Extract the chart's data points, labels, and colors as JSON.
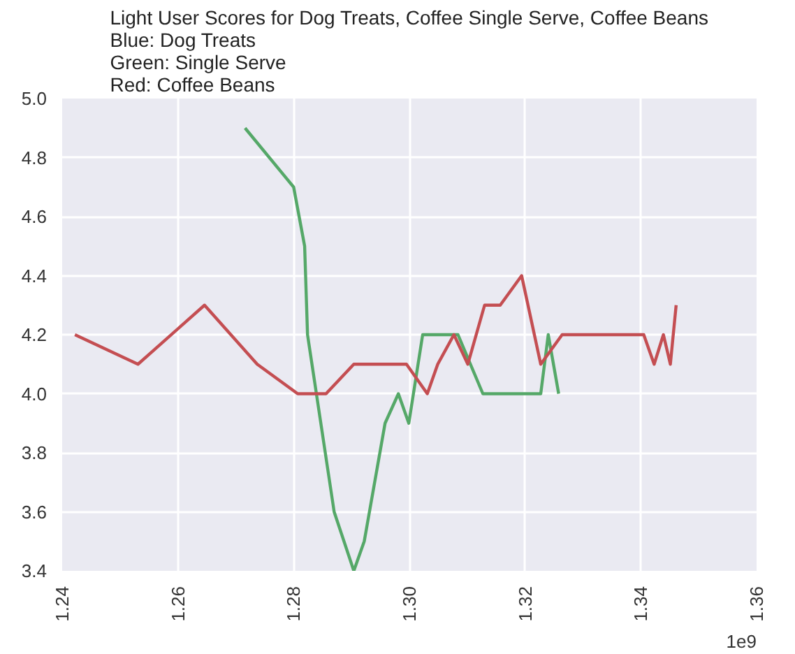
{
  "chart_data": {
    "type": "line",
    "title": "Light User Scores for Dog Treats, Coffee Single Serve, Coffee Beans\nBlue: Dog Treats\nGreen: Single Serve\nRed: Coffee Beans",
    "annotations": [
      "1e9"
    ],
    "series": [
      {
        "color": "#55a868",
        "x": [
          1.2716,
          1.28,
          1.2819,
          1.2824,
          1.287,
          1.2904,
          1.2922,
          1.2958,
          1.2981,
          1.2999,
          1.3023,
          1.3084,
          1.3127,
          1.3227,
          1.324,
          1.3258
        ],
        "values": [
          4.9,
          4.7,
          4.5,
          4.2,
          3.6,
          3.4,
          3.5,
          3.9,
          4.0,
          3.9,
          4.2,
          4.2,
          4.0,
          4.0,
          4.2,
          4.0
        ]
      },
      {
        "color": "#c44e52",
        "x": [
          1.2422,
          1.2531,
          1.2646,
          1.2737,
          1.2807,
          1.2856,
          1.2904,
          1.2995,
          1.3031,
          1.3049,
          1.3077,
          1.3101,
          1.313,
          1.3157,
          1.3194,
          1.3227,
          1.3264,
          1.3405,
          1.3423,
          1.3439,
          1.3451,
          1.3461
        ],
        "values": [
          4.2,
          4.1,
          4.3,
          4.1,
          4.0,
          4.0,
          4.1,
          4.1,
          4.0,
          4.1,
          4.2,
          4.1,
          4.3,
          4.3,
          4.4,
          4.1,
          4.2,
          4.2,
          4.1,
          4.2,
          4.1,
          4.3
        ]
      }
    ],
    "xlim": [
      1.24,
      1.36
    ],
    "xticks": [
      1.24,
      1.26,
      1.28,
      {
        "value": 1.3,
        "label": "1.30"
      },
      1.32,
      1.34,
      1.36
    ],
    "ylim": [
      3.4,
      5.0
    ],
    "yticks": [
      3.4,
      3.6,
      3.8,
      {
        "value": 4,
        "label": "4.0"
      },
      4.2,
      4.4,
      4.6,
      4.8,
      {
        "value": 5,
        "label": "5.0"
      }
    ],
    "grid": true,
    "marker": "none",
    "line_style": "solid"
  }
}
